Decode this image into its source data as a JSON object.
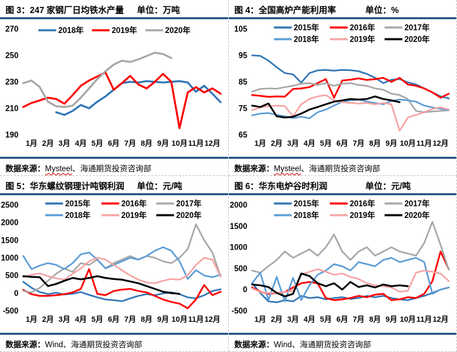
{
  "accent_colors": {
    "rule_navy": "#2B5A87",
    "dashed_border": "#c9c9c9",
    "series_dark_blue": "#2E74B5",
    "series_red": "#FF0000",
    "series_gray": "#A6A6A6",
    "series_light_blue": "#5B9BD5",
    "series_pink": "#F5A3A3",
    "series_black": "#000000"
  },
  "chart_data": [
    {
      "type": "line",
      "title": "图 3：247 家钢厂日均铁水产量",
      "unit": "单位：万吨",
      "source_prefix": "数据来源：",
      "source_name": "Mysteel",
      "source_suffix": "、海通期货投资咨询部",
      "x_tick_labels": [
        "1月",
        "2月",
        "3月",
        "4月",
        "5月",
        "6月",
        "7月",
        "8月",
        "9月",
        "10月",
        "11月",
        "12月"
      ],
      "x_range": [
        1,
        13
      ],
      "ylim": [
        190,
        270
      ],
      "y_ticks": [
        270,
        250,
        230,
        210,
        190
      ],
      "grid": false,
      "legend_position": "top",
      "series": [
        {
          "name": "2018年",
          "color": "#2E74B5",
          "width": 2.8,
          "start": 3,
          "step": 0.5,
          "values": [
            207,
            205,
            208,
            212.5,
            210,
            215,
            219,
            224,
            229,
            230,
            229.5,
            230.5,
            230,
            229.5,
            230,
            230.5,
            229.5,
            222.5,
            227,
            221,
            214.5
          ]
        },
        {
          "name": "2019年",
          "color": "#FF0000",
          "width": 2.8,
          "start": 1,
          "step": 0.5,
          "values": [
            211,
            214,
            216,
            218,
            217,
            213.5,
            220,
            227,
            231,
            234,
            237,
            224,
            229,
            234.5,
            228,
            225,
            230,
            236,
            230,
            195,
            222,
            226,
            222,
            225,
            221
          ]
        },
        {
          "name": "2020年",
          "color": "#A6A6A6",
          "width": 2.8,
          "start": 1,
          "step": 0.5,
          "values": [
            229,
            231,
            226,
            215,
            211.5,
            211,
            212,
            218,
            225,
            232,
            238,
            243,
            246,
            245,
            247,
            249.5,
            252,
            251,
            248
          ]
        }
      ]
    },
    {
      "type": "line",
      "title": "图 4：全国高炉产能利用率",
      "unit": "单位：%",
      "source_prefix": "数据来源：",
      "source_name": "Mysteel",
      "source_suffix": "、海通期货投资咨询部",
      "x_tick_labels": [
        "1月",
        "2月",
        "3月",
        "4月",
        "5月",
        "6月",
        "7月",
        "8月",
        "9月",
        "10月",
        "11月",
        "12月"
      ],
      "x_range": [
        1,
        13
      ],
      "ylim": [
        65,
        105
      ],
      "y_ticks": [
        105,
        95,
        85,
        75,
        65
      ],
      "grid": false,
      "legend_position": "top",
      "series": [
        {
          "name": "2015年",
          "color": "#2E74B5",
          "width": 2.3,
          "start": 1,
          "step": 0.5,
          "values": [
            95,
            94.8,
            93,
            90.5,
            88.3,
            87.8,
            84.7,
            88.3,
            89.3,
            89.5,
            89.2,
            89.5,
            89.4,
            89,
            88,
            86.5,
            84.5,
            85.8,
            86,
            84.8,
            84,
            82.5,
            81,
            79.5,
            78.7
          ]
        },
        {
          "name": "2016年",
          "color": "#FF0000",
          "width": 2.5,
          "start": 1,
          "step": 0.5,
          "values": [
            80,
            79.7,
            79.3,
            79.5,
            79.4,
            82.3,
            82.5,
            83,
            84.5,
            86,
            79,
            85.5,
            85.8,
            86.3,
            85.7,
            86,
            86.5,
            85,
            86.5,
            84,
            83.5,
            82.5,
            81,
            79,
            80.5
          ]
        },
        {
          "name": "2017年",
          "color": "#A6A6A6",
          "width": 2.3,
          "start": 1,
          "step": 0.5,
          "values": [
            81.3,
            82.3,
            82.5,
            82.4,
            83,
            83.5,
            84.3,
            84.5,
            83.8,
            84.5,
            83.5,
            84.3,
            84.5,
            83.8,
            83.5,
            82.5,
            82,
            80.5,
            80,
            78.5,
            74,
            73.5,
            73.8,
            74,
            74.3
          ]
        },
        {
          "name": "2018年",
          "color": "#5B9BD5",
          "width": 2.3,
          "start": 1,
          "step": 0.5,
          "values": [
            72.3,
            73,
            73.2,
            72.5,
            72,
            71.3,
            71.8,
            71.2,
            73.5,
            74.5,
            76,
            77.5,
            78,
            78.3,
            77.5,
            77,
            76.5,
            77.8,
            78.3,
            78,
            77.5,
            76,
            75.3,
            74.8,
            74.3
          ]
        },
        {
          "name": "2019年",
          "color": "#F5A3A3",
          "width": 2.3,
          "start": 1,
          "step": 0.5,
          "values": [
            74.3,
            75.3,
            75.8,
            76,
            75.8,
            72,
            76.5,
            78.5,
            79.5,
            80,
            78,
            77.3,
            77,
            76.8,
            77,
            76.5,
            77,
            76.5,
            66.5,
            71.5,
            72.5,
            73.5,
            74.8,
            75.3,
            74.5
          ]
        },
        {
          "name": "2020年",
          "color": "#000000",
          "width": 2.6,
          "start": 1,
          "step": 0.5,
          "values": [
            76,
            75.5,
            76.8,
            72,
            71.5,
            71.8,
            73,
            74.5,
            75.5,
            76.5,
            77.5,
            78,
            78.5,
            78.3,
            78.5,
            79.5,
            78.5,
            78,
            77.3
          ]
        }
      ]
    },
    {
      "type": "line",
      "title": "图 5：华东螺纹钢理计吨钢利润",
      "unit": "单位：元/吨",
      "source_prefix": "数据来源：",
      "source_name": "Wind",
      "source_suffix": "、海通期货投资咨询部",
      "x_tick_labels": [
        "1月",
        "2月",
        "3月",
        "4月",
        "5月",
        "6月",
        "7月",
        "8月",
        "9月",
        "10月",
        "11月",
        "12月"
      ],
      "x_range": [
        1,
        13
      ],
      "ylim": [
        -500,
        2500
      ],
      "y_ticks": [
        2500,
        2000,
        1500,
        1000,
        500,
        0,
        -500
      ],
      "grid": false,
      "legend_position": "top",
      "series": [
        {
          "name": "2015年",
          "color": "#2E74B5",
          "width": 2.3,
          "start": 1,
          "step": 0.5,
          "values": [
            320,
            150,
            30,
            -30,
            10,
            -40,
            -20,
            30,
            -50,
            -120,
            -180,
            -200,
            -230,
            -150,
            -80,
            -30,
            -60,
            -10,
            20,
            -30,
            -120,
            -150,
            -60,
            60,
            110
          ]
        },
        {
          "name": "2016年",
          "color": "#FF0000",
          "width": 2.5,
          "start": 1,
          "step": 0.5,
          "values": [
            90,
            -30,
            -80,
            -80,
            -60,
            -30,
            20,
            120,
            680,
            -20,
            -60,
            60,
            100,
            120,
            60,
            20,
            -80,
            -180,
            -250,
            -300,
            -430,
            -180,
            230,
            -60,
            40
          ]
        },
        {
          "name": "2017年",
          "color": "#A6A6A6",
          "width": 2.3,
          "start": 1,
          "step": 0.5,
          "values": [
            60,
            20,
            150,
            350,
            550,
            700,
            600,
            850,
            800,
            950,
            700,
            850,
            950,
            1050,
            950,
            1050,
            1000,
            900,
            850,
            1000,
            1250,
            1950,
            1500,
            1150,
            470
          ]
        },
        {
          "name": "2018年",
          "color": "#5B9BD5",
          "width": 2.3,
          "start": 1,
          "step": 0.5,
          "values": [
            1050,
            680,
            780,
            850,
            800,
            680,
            850,
            1100,
            1150,
            950,
            700,
            800,
            900,
            1000,
            950,
            1050,
            1200,
            1300,
            1200,
            900,
            400,
            650,
            500,
            450,
            520
          ]
        },
        {
          "name": "2019年",
          "color": "#F5A3A3",
          "width": 2.3,
          "start": 1,
          "step": 0.5,
          "values": [
            450,
            520,
            560,
            480,
            420,
            380,
            550,
            700,
            900,
            1000,
            950,
            800,
            650,
            500,
            380,
            300,
            280,
            350,
            400,
            380,
            500,
            800,
            1000,
            950,
            470
          ]
        },
        {
          "name": "2020年",
          "color": "#000000",
          "width": 2.6,
          "start": 1,
          "step": 0.5,
          "values": [
            480,
            460,
            450,
            200,
            260,
            350,
            430,
            390,
            430,
            480,
            430,
            400,
            380,
            330,
            280,
            200,
            120,
            40,
            0,
            -20
          ]
        }
      ]
    },
    {
      "type": "line",
      "title": "图 6：华东电炉谷时利润",
      "unit": "单位：元/吨",
      "source_prefix": "数据来源：",
      "source_name": "Wind",
      "source_suffix": "、海通期货投资咨询部",
      "x_tick_labels": [
        "1月",
        "2月",
        "3月",
        "4月",
        "5月",
        "6月",
        "7月",
        "8月",
        "9月",
        "10月",
        "11月",
        "12月"
      ],
      "x_range": [
        1,
        13
      ],
      "ylim": [
        -500,
        2000
      ],
      "y_ticks": [
        2000,
        1500,
        1000,
        500,
        0,
        -500
      ],
      "grid": false,
      "legend_position": "top",
      "series": [
        {
          "name": "2015年",
          "color": "#2E74B5",
          "width": 2.3,
          "start": 1,
          "step": 0.5,
          "values": [
            150,
            -80,
            -280,
            -300,
            -250,
            -280,
            -150,
            -200,
            -180,
            -230,
            -200,
            -180,
            -220,
            -200,
            -150,
            -180,
            -150,
            -200,
            -230,
            -250,
            -200,
            -150,
            -80,
            0,
            50
          ]
        },
        {
          "name": "2016年",
          "color": "#FF0000",
          "width": 2.5,
          "start": 1,
          "step": 0.5,
          "values": [
            50,
            -50,
            -100,
            -80,
            -60,
            50,
            150,
            180,
            150,
            -200,
            -250,
            -230,
            -200,
            -150,
            -180,
            -120,
            -100,
            -250,
            -230,
            -180,
            -200,
            -100,
            200,
            900,
            480
          ]
        },
        {
          "name": "2017年",
          "color": "#A6A6A6",
          "width": 2.3,
          "start": 1,
          "step": 0.5,
          "values": [
            450,
            400,
            550,
            700,
            900,
            750,
            850,
            950,
            800,
            1000,
            1300,
            900,
            700,
            900,
            1000,
            800,
            900,
            1000,
            900,
            850,
            800,
            1100,
            1600,
            1050,
            470
          ]
        },
        {
          "name": "2018年",
          "color": "#5B9BD5",
          "width": 2.3,
          "start": 1,
          "step": 0.5,
          "values": [
            150,
            400,
            -250,
            300,
            -280,
            280,
            -250,
            100,
            350,
            450,
            600,
            550,
            450,
            650,
            600,
            550,
            700,
            750,
            650,
            700,
            750,
            650,
            -100,
            0,
            50
          ]
        },
        {
          "name": "2019年",
          "color": "#F5A3A3",
          "width": 2.3,
          "start": 1,
          "step": 0.5,
          "values": [
            30,
            -60,
            -80,
            -80,
            -60,
            -30,
            350,
            420,
            480,
            420,
            350,
            380,
            300,
            250,
            150,
            100,
            80,
            50,
            -50,
            -30,
            400,
            450,
            420,
            380,
            200
          ]
        },
        {
          "name": "2020年",
          "color": "#000000",
          "width": 2.6,
          "start": 1,
          "step": 0.5,
          "values": [
            120,
            100,
            60,
            -80,
            -160,
            -100,
            380,
            320,
            150,
            80,
            150,
            0,
            180,
            60,
            100,
            50,
            120,
            80,
            100,
            80
          ]
        }
      ]
    }
  ]
}
